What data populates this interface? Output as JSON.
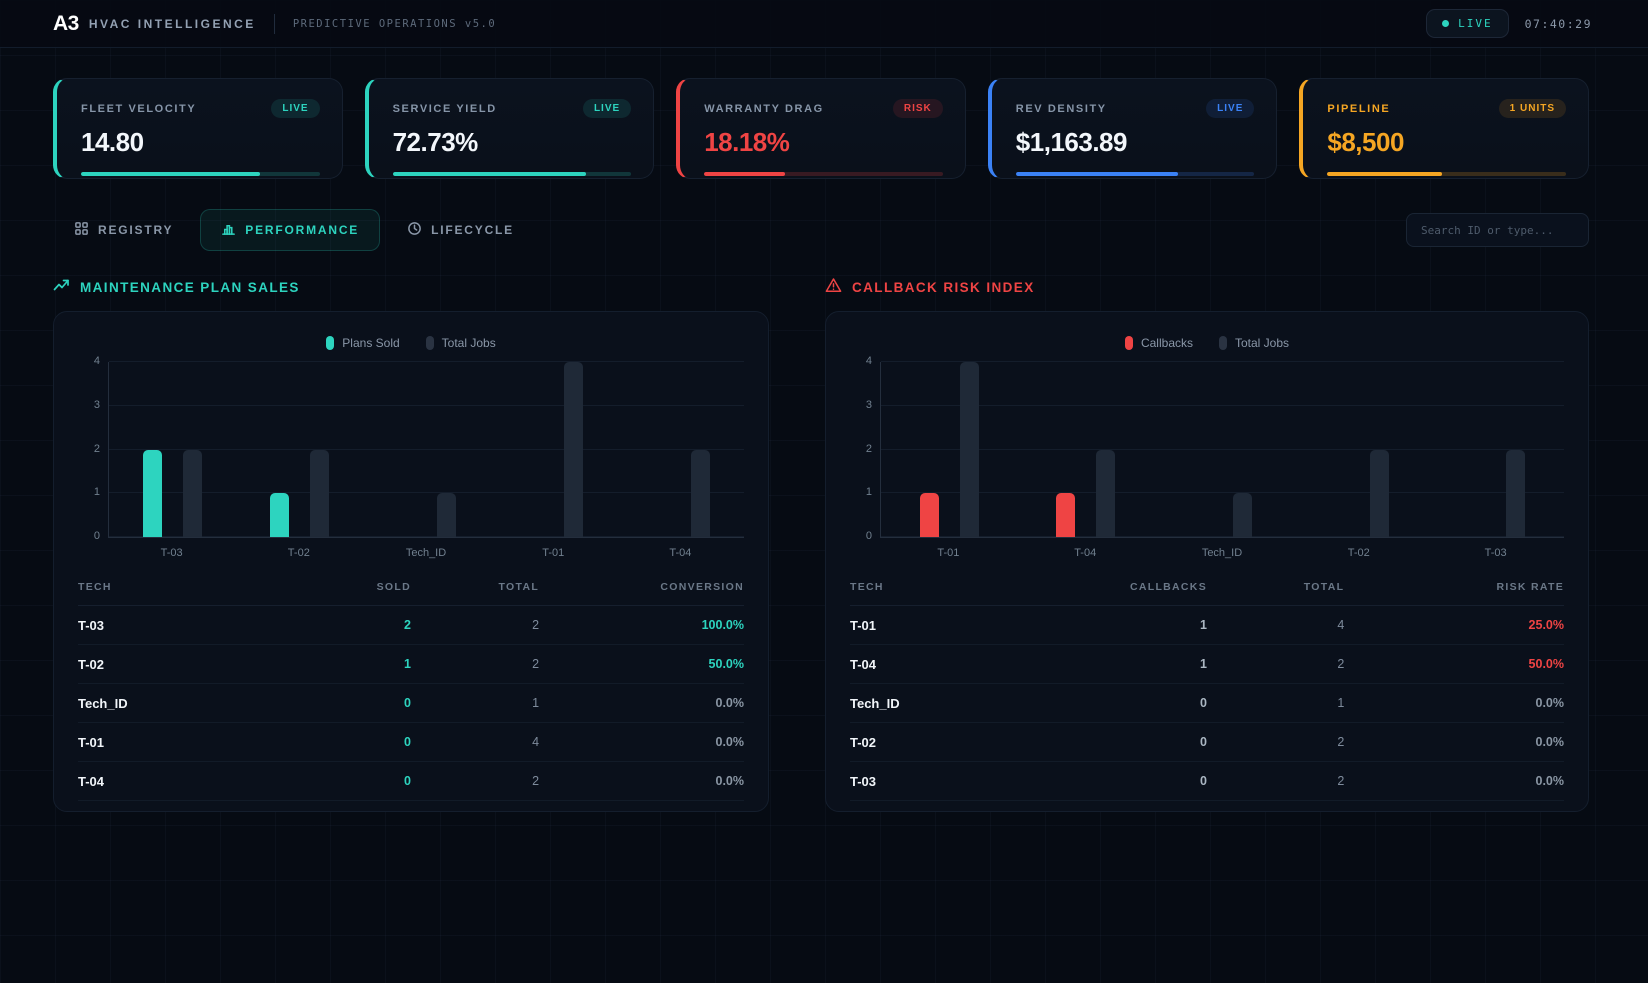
{
  "header": {
    "logo": "A3",
    "brand": "HVAC INTELLIGENCE",
    "subtitle": "PREDICTIVE OPERATIONS v5.0",
    "live_label": "LIVE",
    "clock": "07:40:29"
  },
  "colors": {
    "teal": "#2dd4bf",
    "red": "#ef4444",
    "blue": "#3b82f6",
    "amber": "#f5a623",
    "muted_bar": "#1f2937"
  },
  "kpis": [
    {
      "label": "FLEET VELOCITY",
      "badge": "LIVE",
      "value": "14.80",
      "accent": "#2dd4bf",
      "progress_pct": 75
    },
    {
      "label": "SERVICE YIELD",
      "badge": "LIVE",
      "value": "72.73%",
      "accent": "#2dd4bf",
      "progress_pct": 81
    },
    {
      "label": "WARRANTY DRAG",
      "badge": "RISK",
      "value": "18.18%",
      "accent": "#ef4444",
      "value_color": "#ef4444",
      "progress_pct": 34
    },
    {
      "label": "REV DENSITY",
      "badge": "LIVE",
      "value": "$1,163.89",
      "accent": "#3b82f6",
      "progress_pct": 68
    },
    {
      "label": "PIPELINE",
      "badge": "1 UNITS",
      "value": "$8,500",
      "accent": "#f5a623",
      "value_color": "#f5a623",
      "label_color": "#f5a623",
      "progress_pct": 48
    }
  ],
  "tabs": {
    "items": [
      {
        "label": "REGISTRY",
        "icon": "grid-icon",
        "active": false
      },
      {
        "label": "PERFORMANCE",
        "icon": "bar-chart-icon",
        "active": true
      },
      {
        "label": "LIFECYCLE",
        "icon": "clock-icon",
        "active": false
      }
    ]
  },
  "search": {
    "placeholder": "Search ID or type..."
  },
  "panels": [
    {
      "title": "MAINTENANCE PLAN SALES",
      "icon": "trend-up-icon",
      "accent_hex": "#2dd4bf",
      "col1_accent": true,
      "table": {
        "headers": [
          "TECH",
          "SOLD",
          "TOTAL",
          "CONVERSION"
        ],
        "rows": [
          {
            "tech": "T-03",
            "v1": "2",
            "v2": "2",
            "rate": "100.0%",
            "hot": true
          },
          {
            "tech": "T-02",
            "v1": "1",
            "v2": "2",
            "rate": "50.0%",
            "hot": true
          },
          {
            "tech": "Tech_ID",
            "v1": "0",
            "v2": "1",
            "rate": "0.0%",
            "hot": false
          },
          {
            "tech": "T-01",
            "v1": "0",
            "v2": "4",
            "rate": "0.0%",
            "hot": false
          },
          {
            "tech": "T-04",
            "v1": "0",
            "v2": "2",
            "rate": "0.0%",
            "hot": false
          }
        ]
      }
    },
    {
      "title": "CALLBACK RISK INDEX",
      "icon": "warning-icon",
      "accent_hex": "#ef4444",
      "col1_accent": false,
      "table": {
        "headers": [
          "TECH",
          "CALLBACKS",
          "TOTAL",
          "RISK RATE"
        ],
        "rows": [
          {
            "tech": "T-01",
            "v1": "1",
            "v2": "4",
            "rate": "25.0%",
            "hot": true
          },
          {
            "tech": "T-04",
            "v1": "1",
            "v2": "2",
            "rate": "50.0%",
            "hot": true
          },
          {
            "tech": "Tech_ID",
            "v1": "0",
            "v2": "1",
            "rate": "0.0%",
            "hot": false
          },
          {
            "tech": "T-02",
            "v1": "0",
            "v2": "2",
            "rate": "0.0%",
            "hot": false
          },
          {
            "tech": "T-03",
            "v1": "0",
            "v2": "2",
            "rate": "0.0%",
            "hot": false
          }
        ]
      }
    }
  ],
  "chart_data": [
    {
      "type": "bar",
      "title": "MAINTENANCE PLAN SALES",
      "categories": [
        "T-03",
        "T-02",
        "Tech_ID",
        "T-01",
        "T-04"
      ],
      "series": [
        {
          "name": "Plans Sold",
          "color": "#2dd4bf",
          "values": [
            2,
            1,
            0,
            0,
            0
          ]
        },
        {
          "name": "Total Jobs",
          "color": "#1f2937",
          "values": [
            2,
            2,
            1,
            4,
            2
          ]
        }
      ],
      "xlabel": "",
      "ylabel": "",
      "ylim": [
        0,
        4
      ],
      "yticks": [
        0,
        1,
        2,
        3,
        4
      ],
      "grid": true,
      "legend_position": "top-center"
    },
    {
      "type": "bar",
      "title": "CALLBACK RISK INDEX",
      "categories": [
        "T-01",
        "T-04",
        "Tech_ID",
        "T-02",
        "T-03"
      ],
      "series": [
        {
          "name": "Callbacks",
          "color": "#ef4444",
          "values": [
            1,
            1,
            0,
            0,
            0
          ]
        },
        {
          "name": "Total Jobs",
          "color": "#1f2937",
          "values": [
            4,
            2,
            1,
            2,
            2
          ]
        }
      ],
      "xlabel": "",
      "ylabel": "",
      "ylim": [
        0,
        4
      ],
      "yticks": [
        0,
        1,
        2,
        3,
        4
      ],
      "grid": true,
      "legend_position": "top-center"
    }
  ]
}
